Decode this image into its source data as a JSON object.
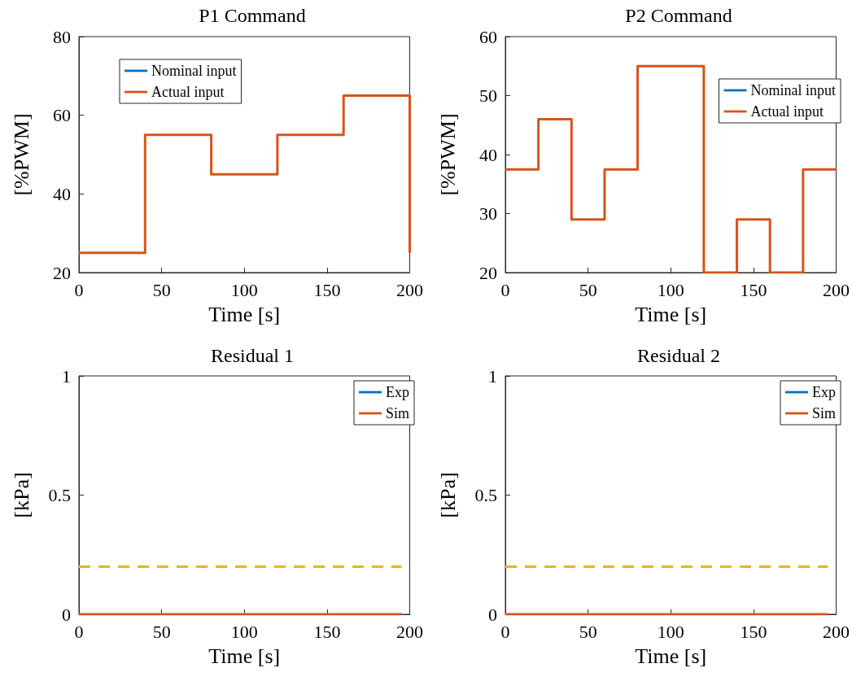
{
  "chart_data": [
    {
      "type": "line",
      "title": "P1 Command",
      "xlabel": "Time [s]",
      "ylabel": "[%PWM]",
      "xlim": [
        0,
        200
      ],
      "xticks": [
        0,
        50,
        100,
        150,
        200
      ],
      "ylim": [
        20,
        80
      ],
      "yticks": [
        20,
        40,
        60,
        80
      ],
      "grid": false,
      "legend": "top left",
      "marker": "none",
      "series": [
        {
          "name": "Nominal input",
          "color": "#0072bd"
        },
        {
          "name": "Actual input",
          "color": "#d95319",
          "x": [
            0,
            40,
            40,
            80,
            80,
            120,
            120,
            160,
            160,
            200,
            200
          ],
          "values": [
            25,
            25,
            55,
            55,
            45,
            45,
            55,
            55,
            65,
            65,
            25
          ]
        }
      ]
    },
    {
      "type": "line",
      "title": "P2 Command",
      "xlabel": "Time [s]",
      "ylabel": "[%PWM]",
      "xlim": [
        0,
        200
      ],
      "xticks": [
        0,
        50,
        100,
        150,
        200
      ],
      "ylim": [
        20,
        60
      ],
      "yticks": [
        20,
        30,
        40,
        50,
        60
      ],
      "grid": false,
      "legend": "right",
      "marker": "none",
      "series": [
        {
          "name": "Nominal input",
          "color": "#0072bd"
        },
        {
          "name": "Actual input",
          "color": "#d95319",
          "x": [
            0,
            20,
            20,
            40,
            40,
            60,
            60,
            80,
            80,
            120,
            120,
            140,
            140,
            160,
            160,
            180,
            180,
            200
          ],
          "values": [
            37.5,
            37.5,
            46,
            46,
            29,
            29,
            37.5,
            37.5,
            55,
            55,
            20,
            20,
            29,
            29,
            20,
            20,
            37.5,
            37.5
          ]
        }
      ]
    },
    {
      "type": "line",
      "title": "Residual 1",
      "xlabel": "Time [s]",
      "ylabel": "[kPa]",
      "xlim": [
        0,
        200
      ],
      "xticks": [
        0,
        50,
        100,
        150,
        200
      ],
      "ylim": [
        0,
        1
      ],
      "yticks": [
        0,
        0.5,
        1
      ],
      "grid": false,
      "legend": "top right",
      "marker": "none",
      "series": [
        {
          "name": "Exp",
          "color": "#0072bd"
        },
        {
          "name": "Sim",
          "color": "#d95319",
          "x": [
            0,
            195
          ],
          "values": [
            0,
            0
          ]
        },
        {
          "color": "#edb120",
          "line_style": "dashed",
          "x": [
            0,
            195
          ],
          "values": [
            0.2,
            0.2
          ]
        }
      ]
    },
    {
      "type": "line",
      "title": "Residual 2",
      "xlabel": "Time [s]",
      "ylabel": "[kPa]",
      "xlim": [
        0,
        200
      ],
      "xticks": [
        0,
        50,
        100,
        150,
        200
      ],
      "ylim": [
        0,
        1
      ],
      "yticks": [
        0,
        0.5,
        1
      ],
      "grid": false,
      "legend": "top right",
      "marker": "none",
      "series": [
        {
          "name": "Exp",
          "color": "#0072bd"
        },
        {
          "name": "Sim",
          "color": "#d95319",
          "x": [
            0,
            195
          ],
          "values": [
            0,
            0
          ]
        },
        {
          "color": "#edb120",
          "line_style": "dashed",
          "x": [
            0,
            195
          ],
          "values": [
            0.2,
            0.2
          ]
        }
      ]
    }
  ]
}
